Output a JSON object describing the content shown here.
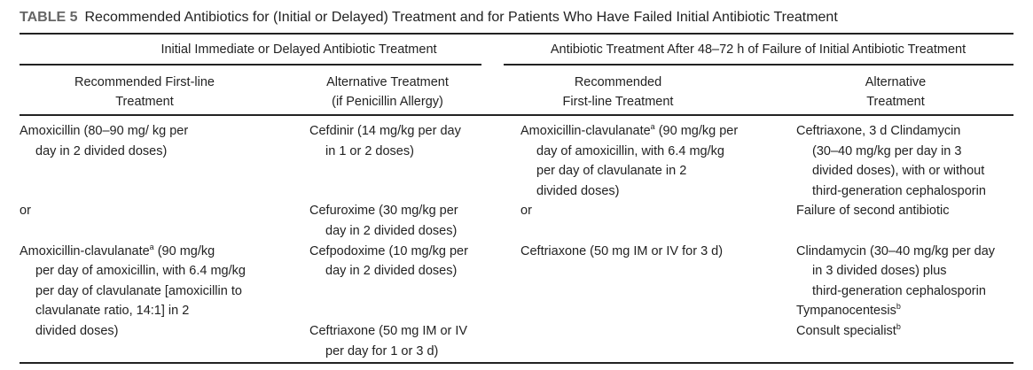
{
  "table": {
    "label": "TABLE 5",
    "title": "Recommended Antibiotics for (Initial or Delayed) Treatment and for Patients Who Have Failed Initial Antibiotic Treatment",
    "groups": [
      "Initial Immediate or Delayed Antibiotic Treatment",
      "Antibiotic Treatment After 48–72 h of Failure of Initial Antibiotic Treatment"
    ],
    "columns": [
      [
        "Recommended First-line",
        "Treatment"
      ],
      [
        "Alternative Treatment",
        "(if Penicillin Allergy)"
      ],
      [
        "Recommended",
        "First-line Treatment"
      ],
      [
        "Alternative",
        "Treatment"
      ]
    ],
    "rows": [
      [
        [
          [
            "Amoxicillin (80–90 mg/ kg per",
            "day in 2 divided doses)"
          ]
        ],
        [
          [
            "Cefdinir (14 mg/kg per day",
            "in 1 or 2 doses)"
          ]
        ],
        [
          [
            [
              "Amoxicillin-clavulanate",
              {
                "sup": "a"
              },
              " (90 mg/kg per"
            ],
            "day of amoxicillin, with 6.4 mg/kg",
            "per day of clavulanate in 2",
            "divided doses)"
          ]
        ],
        [
          [
            "Ceftriaxone, 3 d Clindamycin",
            "(30–40 mg/kg per day in 3",
            "divided doses), with or without",
            "third-generation cephalosporin"
          ]
        ]
      ],
      [
        [
          [
            "or"
          ]
        ],
        [
          [
            "Cefuroxime (30 mg/kg per",
            "day in 2 divided doses)"
          ]
        ],
        [
          [
            "or"
          ]
        ],
        [
          [
            "Failure of second antibiotic"
          ]
        ]
      ],
      [
        [
          [
            [
              "Amoxicillin-clavulanate",
              {
                "sup": "a"
              },
              " (90 mg/kg"
            ],
            "per day of amoxicillin, with 6.4 mg/kg",
            "per day of clavulanate [amoxicillin to",
            "clavulanate ratio, 14:1] in 2",
            "divided doses)"
          ]
        ],
        [
          [
            "Cefpodoxime (10 mg/kg per",
            "day in 2 divided doses)"
          ],
          [
            "Ceftriaxone (50 mg IM or IV",
            "per day for 1 or 3 d)"
          ]
        ],
        [
          [
            "Ceftriaxone (50 mg IM or IV for 3 d)"
          ]
        ],
        [
          [
            "Clindamycin (30–40 mg/kg per day",
            "in 3 divided doses) plus",
            "third-generation cephalosporin"
          ],
          [
            [
              "Tympanocentesis",
              {
                "sup": "b"
              }
            ]
          ],
          [
            [
              "Consult specialist",
              {
                "sup": "b"
              }
            ]
          ]
        ]
      ]
    ]
  }
}
